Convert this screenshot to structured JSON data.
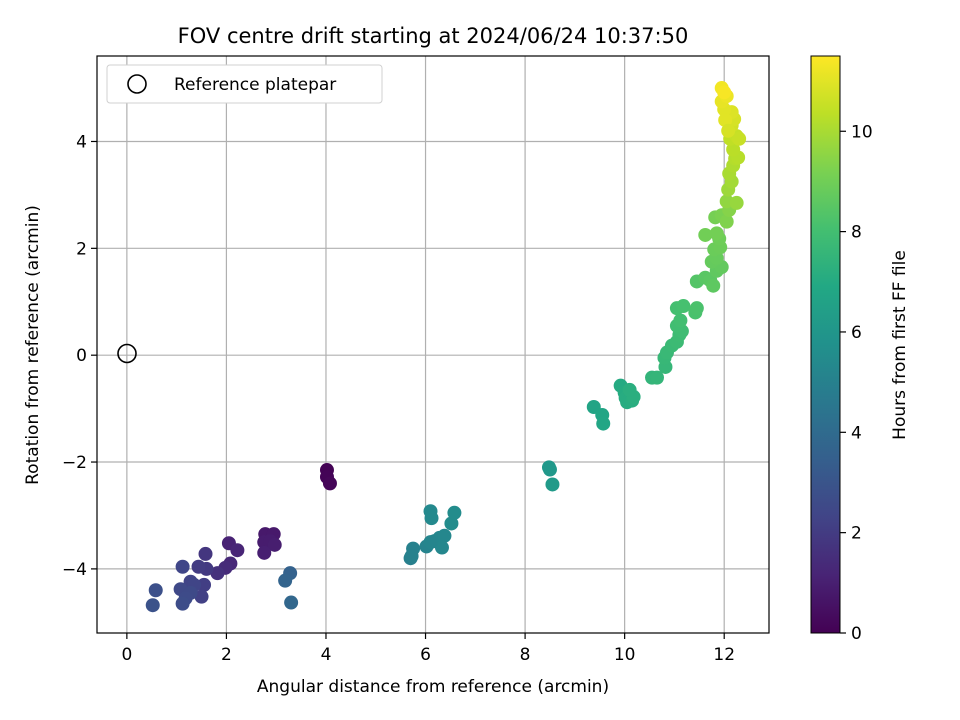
{
  "chart_data": {
    "type": "scatter",
    "title": "FOV centre drift starting at 2024/06/24 10:37:50",
    "xlabel": "Angular distance from reference (arcmin)",
    "ylabel": "Rotation from reference (arcmin)",
    "xlim": [
      -0.6,
      12.9
    ],
    "ylim": [
      -5.2,
      5.6
    ],
    "xticks": [
      0,
      2,
      4,
      6,
      8,
      10,
      12
    ],
    "yticks": [
      -4,
      -2,
      0,
      2,
      4
    ],
    "grid": true,
    "legend": {
      "position": "top-left",
      "entries": [
        "Reference platepar"
      ]
    },
    "reference_point": {
      "x": 0,
      "y": 0
    },
    "colorbar": {
      "label": "Hours from first FF file",
      "colormap": "viridis",
      "range": [
        0,
        11.5
      ],
      "ticks": [
        0,
        2,
        4,
        6,
        8,
        10
      ]
    },
    "series": [
      {
        "points": [
          {
            "x": 4.02,
            "y": -2.15,
            "t": 0.05
          },
          {
            "x": 4.02,
            "y": -2.28,
            "t": 0.1
          },
          {
            "x": 4.08,
            "y": -2.4,
            "t": 0.15
          },
          {
            "x": 2.78,
            "y": -3.35,
            "t": 0.8
          },
          {
            "x": 2.95,
            "y": -3.35,
            "t": 0.8
          },
          {
            "x": 2.76,
            "y": -3.5,
            "t": 0.9
          },
          {
            "x": 2.88,
            "y": -3.48,
            "t": 0.9
          },
          {
            "x": 2.97,
            "y": -3.55,
            "t": 0.95
          },
          {
            "x": 2.76,
            "y": -3.7,
            "t": 1.0
          },
          {
            "x": 2.05,
            "y": -3.52,
            "t": 1.1
          },
          {
            "x": 2.22,
            "y": -3.65,
            "t": 1.2
          },
          {
            "x": 2.08,
            "y": -3.9,
            "t": 1.3
          },
          {
            "x": 1.98,
            "y": -3.98,
            "t": 1.4
          },
          {
            "x": 1.82,
            "y": -4.08,
            "t": 1.6
          },
          {
            "x": 1.58,
            "y": -3.72,
            "t": 1.8
          },
          {
            "x": 1.6,
            "y": -4.0,
            "t": 1.9
          },
          {
            "x": 1.44,
            "y": -3.96,
            "t": 2.0
          },
          {
            "x": 1.55,
            "y": -4.3,
            "t": 2.1
          },
          {
            "x": 1.5,
            "y": -4.52,
            "t": 2.2
          },
          {
            "x": 1.28,
            "y": -4.24,
            "t": 2.3
          },
          {
            "x": 1.35,
            "y": -4.3,
            "t": 2.35
          },
          {
            "x": 1.12,
            "y": -3.96,
            "t": 2.4
          },
          {
            "x": 1.08,
            "y": -4.38,
            "t": 2.5
          },
          {
            "x": 1.28,
            "y": -4.45,
            "t": 2.55
          },
          {
            "x": 1.18,
            "y": -4.55,
            "t": 2.6
          },
          {
            "x": 1.12,
            "y": -4.65,
            "t": 2.7
          },
          {
            "x": 0.58,
            "y": -4.4,
            "t": 2.8
          },
          {
            "x": 0.52,
            "y": -4.68,
            "t": 2.9
          },
          {
            "x": 3.28,
            "y": -4.08,
            "t": 3.6
          },
          {
            "x": 3.18,
            "y": -4.22,
            "t": 3.7
          },
          {
            "x": 3.3,
            "y": -4.63,
            "t": 3.8
          },
          {
            "x": 5.7,
            "y": -3.8,
            "t": 4.9
          },
          {
            "x": 5.75,
            "y": -3.62,
            "t": 5.0
          },
          {
            "x": 5.72,
            "y": -3.76,
            "t": 5.0
          },
          {
            "x": 6.02,
            "y": -3.58,
            "t": 5.1
          },
          {
            "x": 6.18,
            "y": -3.48,
            "t": 5.2
          },
          {
            "x": 6.28,
            "y": -3.42,
            "t": 5.25
          },
          {
            "x": 6.38,
            "y": -3.38,
            "t": 5.3
          },
          {
            "x": 6.33,
            "y": -3.6,
            "t": 5.3
          },
          {
            "x": 6.1,
            "y": -3.5,
            "t": 5.2
          },
          {
            "x": 6.1,
            "y": -2.92,
            "t": 5.4
          },
          {
            "x": 6.12,
            "y": -3.05,
            "t": 5.4
          },
          {
            "x": 6.52,
            "y": -3.15,
            "t": 5.5
          },
          {
            "x": 6.58,
            "y": -2.95,
            "t": 5.5
          },
          {
            "x": 8.48,
            "y": -2.1,
            "t": 6.1
          },
          {
            "x": 8.5,
            "y": -2.14,
            "t": 6.1
          },
          {
            "x": 8.55,
            "y": -2.42,
            "t": 6.2
          },
          {
            "x": 9.38,
            "y": -0.97,
            "t": 6.7
          },
          {
            "x": 9.55,
            "y": -1.12,
            "t": 6.75
          },
          {
            "x": 9.57,
            "y": -1.28,
            "t": 6.8
          },
          {
            "x": 9.92,
            "y": -0.57,
            "t": 7.0
          },
          {
            "x": 10.0,
            "y": -0.7,
            "t": 7.05
          },
          {
            "x": 10.02,
            "y": -0.8,
            "t": 7.1
          },
          {
            "x": 10.05,
            "y": -0.88,
            "t": 7.1
          },
          {
            "x": 10.15,
            "y": -0.85,
            "t": 7.15
          },
          {
            "x": 10.18,
            "y": -0.78,
            "t": 7.2
          },
          {
            "x": 10.1,
            "y": -0.65,
            "t": 7.2
          },
          {
            "x": 10.55,
            "y": -0.42,
            "t": 7.5
          },
          {
            "x": 10.65,
            "y": -0.42,
            "t": 7.55
          },
          {
            "x": 10.82,
            "y": -0.22,
            "t": 7.6
          },
          {
            "x": 10.8,
            "y": -0.05,
            "t": 7.65
          },
          {
            "x": 10.85,
            "y": 0.05,
            "t": 7.7
          },
          {
            "x": 10.95,
            "y": 0.18,
            "t": 7.75
          },
          {
            "x": 11.05,
            "y": 0.25,
            "t": 7.8
          },
          {
            "x": 11.1,
            "y": 0.38,
            "t": 7.85
          },
          {
            "x": 11.15,
            "y": 0.45,
            "t": 7.9
          },
          {
            "x": 11.05,
            "y": 0.55,
            "t": 7.95
          },
          {
            "x": 11.12,
            "y": 0.65,
            "t": 8.0
          },
          {
            "x": 11.05,
            "y": 0.88,
            "t": 8.05
          },
          {
            "x": 11.18,
            "y": 0.92,
            "t": 8.1
          },
          {
            "x": 11.42,
            "y": 0.8,
            "t": 8.15
          },
          {
            "x": 11.45,
            "y": 0.88,
            "t": 8.2
          },
          {
            "x": 11.45,
            "y": 1.38,
            "t": 8.4
          },
          {
            "x": 11.62,
            "y": 1.45,
            "t": 8.5
          },
          {
            "x": 11.72,
            "y": 1.4,
            "t": 8.55
          },
          {
            "x": 11.78,
            "y": 1.3,
            "t": 8.6
          },
          {
            "x": 11.85,
            "y": 1.58,
            "t": 8.65
          },
          {
            "x": 11.95,
            "y": 1.65,
            "t": 8.7
          },
          {
            "x": 11.75,
            "y": 1.75,
            "t": 8.75
          },
          {
            "x": 11.85,
            "y": 1.82,
            "t": 8.8
          },
          {
            "x": 11.8,
            "y": 1.98,
            "t": 8.85
          },
          {
            "x": 11.92,
            "y": 2.02,
            "t": 8.9
          },
          {
            "x": 11.9,
            "y": 2.18,
            "t": 8.95
          },
          {
            "x": 11.62,
            "y": 2.25,
            "t": 9.0
          },
          {
            "x": 11.85,
            "y": 2.28,
            "t": 9.05
          },
          {
            "x": 11.82,
            "y": 2.58,
            "t": 9.1
          },
          {
            "x": 11.95,
            "y": 2.62,
            "t": 9.2
          },
          {
            "x": 12.05,
            "y": 2.5,
            "t": 9.3
          },
          {
            "x": 12.1,
            "y": 2.72,
            "t": 9.4
          },
          {
            "x": 12.05,
            "y": 2.88,
            "t": 9.6
          },
          {
            "x": 12.25,
            "y": 2.85,
            "t": 9.7
          },
          {
            "x": 12.08,
            "y": 3.1,
            "t": 9.8
          },
          {
            "x": 12.15,
            "y": 3.25,
            "t": 9.9
          },
          {
            "x": 12.1,
            "y": 3.4,
            "t": 10.0
          },
          {
            "x": 12.18,
            "y": 3.55,
            "t": 10.1
          },
          {
            "x": 12.22,
            "y": 3.68,
            "t": 10.2
          },
          {
            "x": 12.28,
            "y": 3.7,
            "t": 10.25
          },
          {
            "x": 12.18,
            "y": 3.85,
            "t": 10.3
          },
          {
            "x": 12.12,
            "y": 4.05,
            "t": 10.4
          },
          {
            "x": 12.25,
            "y": 4.1,
            "t": 10.5
          },
          {
            "x": 12.3,
            "y": 4.05,
            "t": 10.55
          },
          {
            "x": 12.15,
            "y": 4.3,
            "t": 10.7
          },
          {
            "x": 12.2,
            "y": 4.42,
            "t": 10.8
          },
          {
            "x": 12.15,
            "y": 4.55,
            "t": 10.9
          },
          {
            "x": 12.0,
            "y": 4.6,
            "t": 11.0
          },
          {
            "x": 11.95,
            "y": 4.75,
            "t": 11.1
          },
          {
            "x": 12.05,
            "y": 4.85,
            "t": 11.2
          },
          {
            "x": 11.95,
            "y": 5.0,
            "t": 11.3
          },
          {
            "x": 12.0,
            "y": 4.92,
            "t": 11.4
          },
          {
            "x": 12.02,
            "y": 4.4,
            "t": 11.0
          },
          {
            "x": 12.08,
            "y": 4.2,
            "t": 10.8
          }
        ]
      }
    ]
  }
}
